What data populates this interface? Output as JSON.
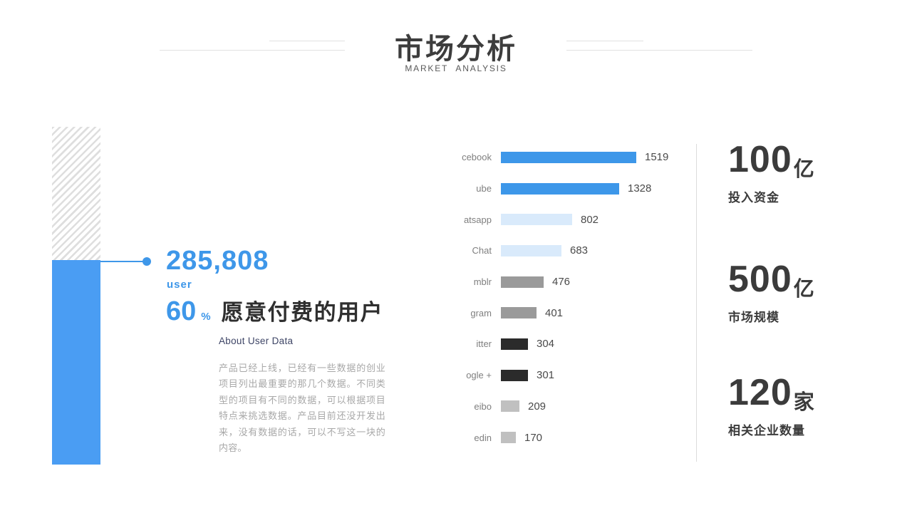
{
  "header": {
    "title": "市场分析",
    "subtitle": "MARKET ANALYSIS"
  },
  "left_panel": {
    "user_count": "285,808",
    "user_label": "user",
    "percent_value": "60",
    "percent_sign": "%",
    "headline": "愿意付费的用户",
    "subheading": "About User Data",
    "paragraph": "产品已经上线，已经有一些数据的创业项目列出最重要的那几个数据。不同类型的项目有不同的数据，可以根据项目特点来挑选数据。产品目前还没开发出来，没有数据的话，可以不写这一块的内容。"
  },
  "chart_data": {
    "type": "bar",
    "orientation": "horizontal",
    "title": "",
    "xlabel": "",
    "ylabel": "",
    "grid": false,
    "legend": false,
    "xlim": [
      0,
      1519
    ],
    "categories": [
      "cebook",
      "ube",
      "atsapp",
      "Chat",
      "mblr",
      "gram",
      "itter",
      "ogle +",
      "eibo",
      "edin"
    ],
    "values": [
      1519,
      1328,
      802,
      683,
      476,
      401,
      304,
      301,
      209,
      170
    ],
    "bar_colors": [
      "#3d97e9",
      "#3d97e9",
      "#d9eafb",
      "#d9eafb",
      "#9a9a9a",
      "#9a9a9a",
      "#2b2b2b",
      "#2b2b2b",
      "#c0c0c0",
      "#c0c0c0"
    ],
    "value_labels_shown": true
  },
  "stats": [
    {
      "value": "100",
      "unit": "亿",
      "label": "投入资金"
    },
    {
      "value": "500",
      "unit": "亿",
      "label": "市场规模"
    },
    {
      "value": "120",
      "unit": "家",
      "label": "相关企业数量"
    }
  ],
  "colors": {
    "accent_blue": "#3e97e9",
    "block_blue": "#4a9df3",
    "dark_text": "#3b3b3b",
    "muted_text": "#a8a8a8",
    "divider": "#dcdcdc"
  }
}
